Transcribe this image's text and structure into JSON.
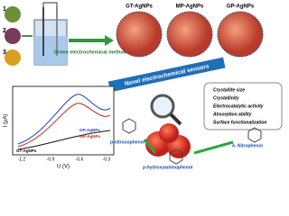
{
  "sources": [
    "1",
    "2",
    "3"
  ],
  "method": "Green electrochemical method",
  "particles": [
    "GT-AgNPs",
    "MP-AgNPs",
    "GP-AgNPs"
  ],
  "banner": "Novel electrochemical sensors",
  "properties": [
    "Crystallite size",
    "Crystallinity",
    "Electrocatalytic activity",
    "Absorption ability",
    "Surface functionalization"
  ],
  "plot": {
    "ylabel": "I (μA)",
    "xlabel": "U (V)",
    "xticks": [
      "-1.2",
      "-0.9",
      "-0.6",
      "-0.3"
    ],
    "legend": [
      "GP-AgNPs",
      "MP-AgNPs",
      "GT-AgNPs"
    ]
  },
  "molecules": [
    "p-nitrosophenol",
    "p-hydroxyaminophenol",
    "4- Nitrophenol"
  ]
}
